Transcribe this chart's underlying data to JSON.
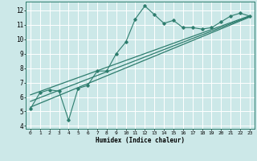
{
  "xlabel": "Humidex (Indice chaleur)",
  "bg_color": "#cce8e8",
  "grid_color": "#ffffff",
  "line_color": "#2e7d6e",
  "xlim": [
    -0.5,
    23.5
  ],
  "ylim": [
    3.8,
    12.6
  ],
  "xticks": [
    0,
    1,
    2,
    3,
    4,
    5,
    6,
    7,
    8,
    9,
    10,
    11,
    12,
    13,
    14,
    15,
    16,
    17,
    18,
    19,
    20,
    21,
    22,
    23
  ],
  "yticks": [
    4,
    5,
    6,
    7,
    8,
    9,
    10,
    11,
    12
  ],
  "zigzag_x": [
    0,
    1,
    2,
    3,
    4,
    5,
    6,
    7,
    8,
    9,
    10,
    11,
    12,
    13,
    14,
    15,
    16,
    17,
    18,
    19,
    20,
    21,
    22,
    23
  ],
  "zigzag_y": [
    5.2,
    6.3,
    6.5,
    6.4,
    4.4,
    6.6,
    6.8,
    7.8,
    7.8,
    9.0,
    9.8,
    11.4,
    12.3,
    11.7,
    11.1,
    11.3,
    10.8,
    10.8,
    10.7,
    10.8,
    11.2,
    11.6,
    11.8,
    11.6
  ],
  "line1_x": [
    0,
    23
  ],
  "line1_y": [
    6.15,
    11.62
  ],
  "line2_x": [
    0,
    23
  ],
  "line2_y": [
    5.7,
    11.58
  ],
  "line3_x": [
    0,
    23
  ],
  "line3_y": [
    5.3,
    11.53
  ]
}
